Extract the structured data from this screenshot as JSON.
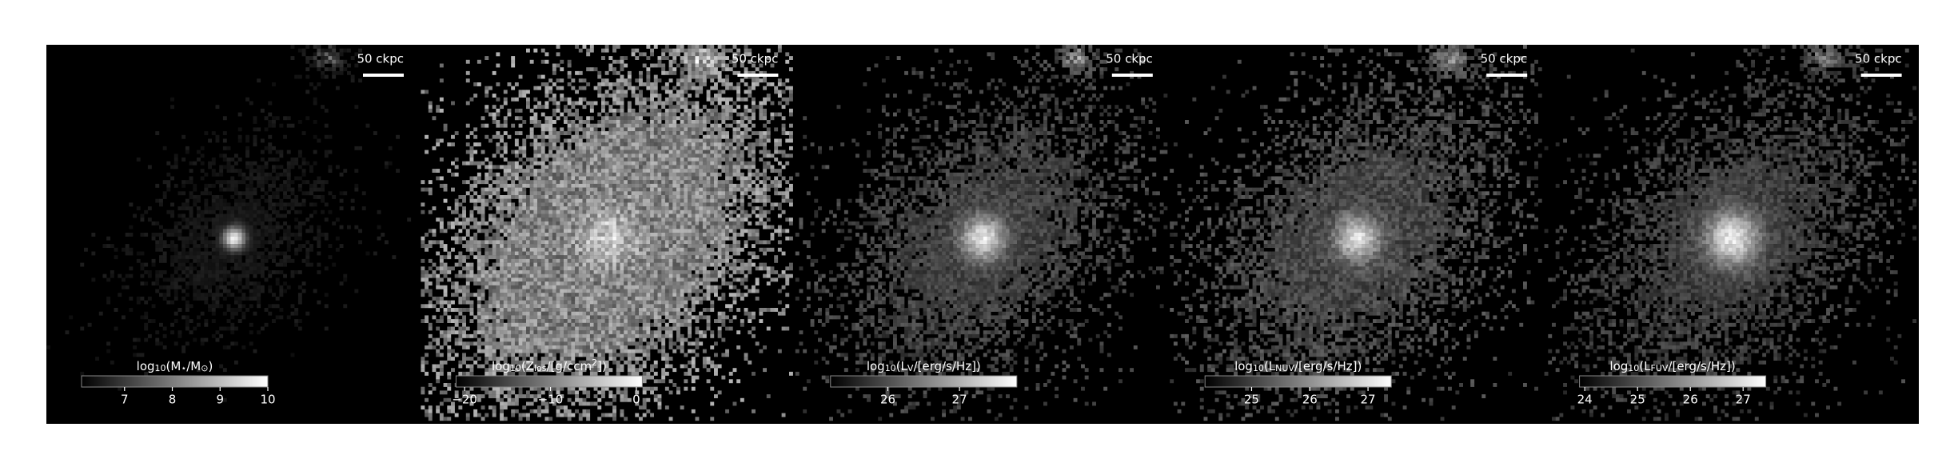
{
  "panels": [
    {
      "scalebar": "50 ckpc",
      "colorbar": {
        "label": [
          {
            "text": "log"
          },
          {
            "text": "10",
            "sub": true
          },
          {
            "text": "(M"
          },
          {
            "text": "⋆",
            "sub": true
          },
          {
            "text": "/M"
          },
          {
            "text": "⊙",
            "sub": true
          },
          {
            "text": ")"
          }
        ],
        "clim": [
          6.1,
          10
        ],
        "ticks": [
          7,
          8,
          9,
          10
        ]
      }
    },
    {
      "scalebar": "50 ckpc",
      "colorbar": {
        "label": [
          {
            "text": "log"
          },
          {
            "text": "10",
            "sub": true
          },
          {
            "text": "(Z"
          },
          {
            "text": "los",
            "sub": true
          },
          {
            "text": "/[g/ccm"
          },
          {
            "text": "2",
            "sup": true
          },
          {
            "text": "])"
          }
        ],
        "clim": [
          -21,
          0.7
        ],
        "ticks": [
          {
            "value": -20,
            "label": "−20"
          },
          {
            "value": -10,
            "label": "−10"
          },
          0
        ]
      }
    },
    {
      "scalebar": "50 ckpc",
      "colorbar": {
        "label": [
          {
            "text": "log"
          },
          {
            "text": "10",
            "sub": true
          },
          {
            "text": "(L"
          },
          {
            "text": "V",
            "sub": true
          },
          {
            "text": "/[erg/s/Hz])"
          }
        ],
        "clim": [
          25.2,
          27.8
        ],
        "ticks": [
          26,
          27
        ]
      }
    },
    {
      "scalebar": "50 ckpc",
      "colorbar": {
        "label": [
          {
            "text": "log"
          },
          {
            "text": "10",
            "sub": true
          },
          {
            "text": "(L"
          },
          {
            "text": "NUV",
            "sub": true
          },
          {
            "text": "/[erg/s/Hz])"
          }
        ],
        "clim": [
          24.2,
          27.4
        ],
        "ticks": [
          25,
          26,
          27
        ]
      }
    },
    {
      "scalebar": "50 ckpc",
      "colorbar": {
        "label": [
          {
            "text": "log"
          },
          {
            "text": "10",
            "sub": true
          },
          {
            "text": "(L"
          },
          {
            "text": "FUV",
            "sub": true
          },
          {
            "text": "/[erg/s/Hz])"
          }
        ],
        "clim": [
          23.9,
          27.43
        ],
        "ticks": [
          24,
          25,
          26,
          27
        ]
      }
    }
  ]
}
